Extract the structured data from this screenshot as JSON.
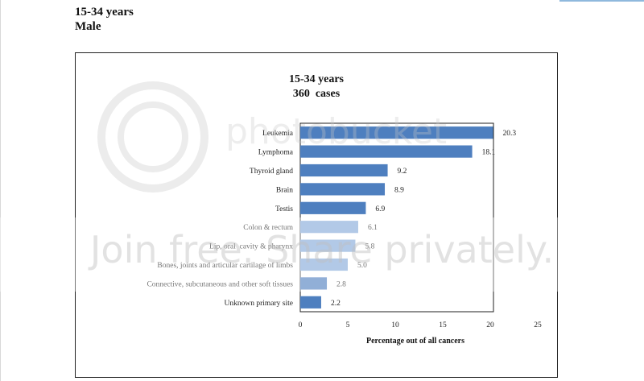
{
  "header": {
    "line1": "15-34 years",
    "line2": "Male"
  },
  "watermark": {
    "brand": "photobucket",
    "banner": "Join free. Share privately."
  },
  "colors": {
    "bar_dark": "#4e7fbf",
    "bar_light": "#83a9d8",
    "axis": "#222222"
  },
  "chart_data": {
    "type": "bar",
    "orientation": "horizontal",
    "title": "15-34 years",
    "subtitle": "360  cases",
    "xlabel": "Percentage out of all cancers",
    "ylabel": "",
    "xlim": [
      0,
      25
    ],
    "xticks": [
      "0",
      "5",
      "10",
      "15",
      "20",
      "25"
    ],
    "grid": false,
    "categories": [
      "Leukemia",
      "Lymphoma",
      "Thyroid gland",
      "Brain",
      "Testis",
      "Colon & rectum",
      "Lip, oral  cavity & pharynx",
      "Bones, joints and articular cartilage of limbs",
      "Connective, subcutaneous and other soft tissues",
      "Unknown primary site"
    ],
    "values": [
      20.3,
      18.1,
      9.2,
      8.9,
      6.9,
      6.1,
      5.8,
      5.0,
      2.8,
      2.2
    ],
    "value_labels": [
      "20.3",
      "18.1",
      "9.2",
      "8.9",
      "6.9",
      "6.1",
      "5.8",
      "5.0",
      "2.8",
      "2.2"
    ]
  }
}
